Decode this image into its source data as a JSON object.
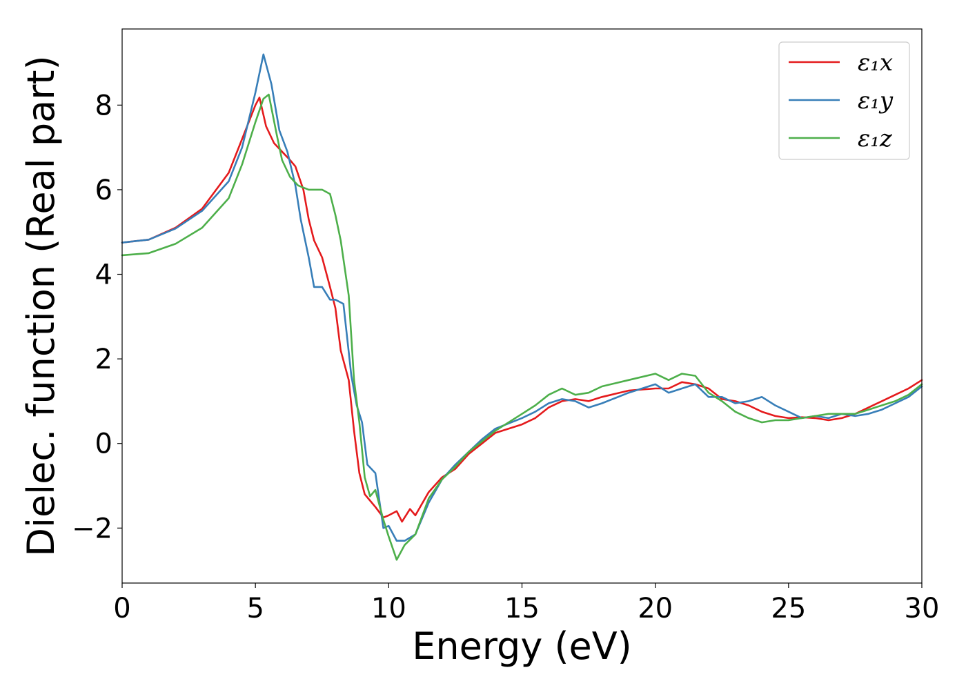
{
  "chart_data": {
    "type": "line",
    "title": "",
    "xlabel": "Energy (eV)",
    "ylabel": "Dielec. function (Real part)",
    "xlim": [
      0,
      30
    ],
    "ylim": [
      -3.3,
      9.8
    ],
    "xticks": [
      0,
      5,
      10,
      15,
      20,
      25,
      30
    ],
    "yticks": [
      -2,
      0,
      2,
      4,
      6,
      8
    ],
    "xtick_labels": [
      "0",
      "5",
      "10",
      "15",
      "20",
      "25",
      "30"
    ],
    "ytick_labels": [
      "−2",
      "0",
      "2",
      "4",
      "6",
      "8"
    ],
    "grid": false,
    "legend_position": "top-right",
    "series": [
      {
        "name": "ε₁x",
        "color": "#e41a1c",
        "x": [
          0,
          1,
          2,
          3,
          4,
          4.5,
          5.0,
          5.15,
          5.4,
          5.7,
          6.0,
          6.3,
          6.5,
          6.8,
          7.0,
          7.2,
          7.5,
          7.8,
          8.0,
          8.2,
          8.5,
          8.7,
          8.9,
          9.1,
          9.3,
          9.5,
          9.8,
          10.0,
          10.3,
          10.5,
          10.8,
          11.0,
          11.5,
          12.0,
          12.5,
          13.0,
          13.5,
          14.0,
          15.0,
          15.5,
          16.0,
          16.5,
          17.0,
          17.5,
          18.0,
          19.0,
          20.0,
          20.5,
          21.0,
          21.5,
          22.0,
          22.5,
          23.0,
          23.5,
          24.0,
          24.5,
          25.0,
          25.5,
          26.0,
          26.5,
          27.0,
          27.5,
          28.0,
          28.5,
          29.0,
          29.5,
          30.0
        ],
        "values": [
          4.75,
          4.82,
          5.1,
          5.55,
          6.4,
          7.2,
          8.0,
          8.18,
          7.5,
          7.1,
          6.9,
          6.7,
          6.55,
          6.0,
          5.3,
          4.8,
          4.4,
          3.7,
          3.2,
          2.2,
          1.5,
          0.3,
          -0.7,
          -1.2,
          -1.35,
          -1.5,
          -1.75,
          -1.7,
          -1.6,
          -1.85,
          -1.55,
          -1.7,
          -1.15,
          -0.8,
          -0.6,
          -0.25,
          0.0,
          0.25,
          0.45,
          0.6,
          0.85,
          1.0,
          1.05,
          1.0,
          1.1,
          1.25,
          1.3,
          1.3,
          1.45,
          1.4,
          1.3,
          1.05,
          1.0,
          0.9,
          0.75,
          0.65,
          0.6,
          0.62,
          0.6,
          0.55,
          0.6,
          0.7,
          0.85,
          1.0,
          1.15,
          1.3,
          1.5
        ]
      },
      {
        "name": "ε₁y",
        "color": "#377eb8",
        "x": [
          0,
          1,
          2,
          3,
          4,
          4.5,
          5.0,
          5.3,
          5.6,
          5.9,
          6.2,
          6.5,
          6.7,
          7.0,
          7.2,
          7.5,
          7.8,
          8.0,
          8.3,
          8.6,
          8.8,
          9.0,
          9.2,
          9.5,
          9.8,
          10.0,
          10.3,
          10.6,
          11.0,
          11.5,
          12.0,
          12.5,
          13.0,
          13.5,
          14.0,
          15.0,
          15.5,
          16.0,
          16.5,
          17.0,
          17.5,
          18.0,
          19.0,
          20.0,
          20.5,
          21.0,
          21.5,
          22.0,
          22.5,
          23.0,
          23.5,
          24.0,
          24.5,
          25.0,
          25.5,
          26.0,
          26.5,
          27.0,
          27.5,
          28.0,
          28.5,
          29.0,
          29.5,
          30.0
        ],
        "values": [
          4.75,
          4.82,
          5.08,
          5.5,
          6.2,
          7.0,
          8.3,
          9.2,
          8.5,
          7.4,
          6.9,
          6.1,
          5.3,
          4.4,
          3.7,
          3.7,
          3.4,
          3.4,
          3.3,
          1.6,
          0.9,
          0.5,
          -0.5,
          -0.7,
          -2.0,
          -1.95,
          -2.3,
          -2.3,
          -2.15,
          -1.4,
          -0.85,
          -0.5,
          -0.2,
          0.1,
          0.35,
          0.6,
          0.75,
          0.95,
          1.05,
          1.0,
          0.85,
          0.95,
          1.2,
          1.4,
          1.2,
          1.3,
          1.4,
          1.1,
          1.1,
          0.95,
          1.0,
          1.1,
          0.9,
          0.75,
          0.6,
          0.65,
          0.6,
          0.7,
          0.65,
          0.7,
          0.8,
          0.95,
          1.1,
          1.35
        ]
      },
      {
        "name": "ε₁z",
        "color": "#4daf4a",
        "x": [
          0,
          1,
          2,
          3,
          4,
          4.5,
          5.0,
          5.3,
          5.5,
          5.8,
          6.0,
          6.3,
          6.6,
          7.0,
          7.5,
          7.8,
          8.0,
          8.2,
          8.5,
          8.7,
          8.9,
          9.1,
          9.3,
          9.5,
          9.8,
          10.0,
          10.3,
          10.6,
          11.0,
          11.5,
          12.0,
          12.5,
          13.0,
          13.5,
          14.0,
          15.0,
          15.5,
          16.0,
          16.5,
          17.0,
          17.5,
          18.0,
          19.0,
          20.0,
          20.5,
          21.0,
          21.5,
          22.0,
          22.5,
          23.0,
          23.5,
          24.0,
          24.5,
          25.0,
          25.5,
          26.0,
          26.5,
          27.0,
          27.5,
          28.0,
          28.5,
          29.0,
          29.5,
          30.0
        ],
        "values": [
          4.45,
          4.5,
          4.72,
          5.1,
          5.8,
          6.6,
          7.6,
          8.15,
          8.25,
          7.3,
          6.7,
          6.3,
          6.1,
          6.0,
          6.0,
          5.9,
          5.4,
          4.8,
          3.5,
          1.5,
          0.5,
          -0.8,
          -1.25,
          -1.1,
          -1.8,
          -2.2,
          -2.75,
          -2.4,
          -2.15,
          -1.3,
          -0.85,
          -0.55,
          -0.2,
          0.05,
          0.3,
          0.7,
          0.9,
          1.15,
          1.3,
          1.15,
          1.2,
          1.35,
          1.5,
          1.65,
          1.5,
          1.65,
          1.6,
          1.2,
          1.0,
          0.75,
          0.6,
          0.5,
          0.55,
          0.55,
          0.6,
          0.65,
          0.7,
          0.7,
          0.7,
          0.8,
          0.9,
          1.0,
          1.15,
          1.4
        ]
      }
    ]
  }
}
